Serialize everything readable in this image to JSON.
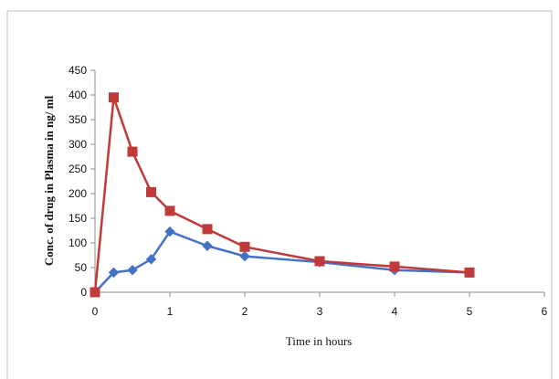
{
  "chart_data": {
    "type": "line",
    "title": "",
    "xlabel": "Time in hours",
    "ylabel": "Conc. of drug in Plasma in ng/ ml",
    "xlim": [
      0,
      6
    ],
    "ylim": [
      0,
      450
    ],
    "xticks": [
      0,
      1,
      2,
      3,
      4,
      5,
      6
    ],
    "yticks": [
      0,
      50,
      100,
      150,
      200,
      250,
      300,
      350,
      400,
      450
    ],
    "grid": false,
    "legend": "none",
    "series": [
      {
        "marker": "diamond",
        "color": "#4472C4",
        "points": [
          {
            "x": 0,
            "y": 0
          },
          {
            "x": 0.25,
            "y": 40
          },
          {
            "x": 0.5,
            "y": 45
          },
          {
            "x": 0.75,
            "y": 67
          },
          {
            "x": 1,
            "y": 123
          },
          {
            "x": 1.5,
            "y": 94
          },
          {
            "x": 2,
            "y": 73
          },
          {
            "x": 3,
            "y": 61
          },
          {
            "x": 4,
            "y": 45
          },
          {
            "x": 5,
            "y": 40
          }
        ]
      },
      {
        "marker": "square",
        "color": "#C0393B",
        "points": [
          {
            "x": 0,
            "y": 0
          },
          {
            "x": 0.25,
            "y": 395
          },
          {
            "x": 0.5,
            "y": 285
          },
          {
            "x": 0.75,
            "y": 203
          },
          {
            "x": 1,
            "y": 165
          },
          {
            "x": 1.5,
            "y": 128
          },
          {
            "x": 2,
            "y": 92
          },
          {
            "x": 3,
            "y": 63
          },
          {
            "x": 4,
            "y": 52
          },
          {
            "x": 5,
            "y": 40
          }
        ]
      }
    ]
  }
}
